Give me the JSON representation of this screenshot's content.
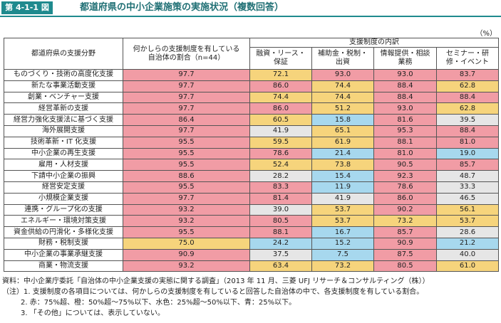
{
  "header": {
    "figure_no": "第 4-1-1 図",
    "title": "都道府県の中小企業施策の実施状況（複数回答）"
  },
  "unit": "（%）",
  "table": {
    "col_header": "都道府県の支援分野",
    "share_header": "何かしらの支援制度を有している自治体の割合（n=44）",
    "group_header": "支援制度の内訳",
    "sub_headers": [
      "融資・リース・保証",
      "補助金・税制・出資",
      "情報提供・相談業務",
      "セミナー・研修・イベント"
    ],
    "rows": [
      {
        "label": "ものづくり・技術の高度化支援",
        "values": [
          "97.7",
          "72.1",
          "93.0",
          "93.0",
          "83.7"
        ],
        "colors": [
          "#f19ca5",
          "#f6d47c",
          "#f19ca5",
          "#f19ca5",
          "#f19ca5"
        ]
      },
      {
        "label": "新たな事業活動支援",
        "values": [
          "97.7",
          "86.0",
          "74.4",
          "88.4",
          "62.8"
        ],
        "colors": [
          "#f19ca5",
          "#f19ca5",
          "#f6d47c",
          "#f19ca5",
          "#f6d47c"
        ]
      },
      {
        "label": "創業・ベンチャー支援",
        "values": [
          "97.7",
          "74.4",
          "74.4",
          "88.4",
          "88.4"
        ],
        "colors": [
          "#f19ca5",
          "#f6d47c",
          "#f6d47c",
          "#f19ca5",
          "#f19ca5"
        ]
      },
      {
        "label": "経営革新の支援",
        "values": [
          "97.7",
          "86.0",
          "51.2",
          "93.0",
          "62.8"
        ],
        "colors": [
          "#f19ca5",
          "#f19ca5",
          "#f6d47c",
          "#f19ca5",
          "#f6d47c"
        ]
      },
      {
        "label": "経営力強化支援法に基づく支援",
        "values": [
          "86.4",
          "60.5",
          "15.8",
          "81.6",
          "39.5"
        ],
        "colors": [
          "#f19ca5",
          "#f6d47c",
          "#a7d8ee",
          "#f19ca5",
          "#e6e6e6"
        ]
      },
      {
        "label": "海外展開支援",
        "values": [
          "97.7",
          "41.9",
          "65.1",
          "95.3",
          "88.4"
        ],
        "colors": [
          "#f19ca5",
          "#e6e6e6",
          "#f6d47c",
          "#f19ca5",
          "#f19ca5"
        ]
      },
      {
        "label": "技術革新・IT 化支援",
        "values": [
          "95.5",
          "59.5",
          "61.9",
          "88.1",
          "81.0"
        ],
        "colors": [
          "#f19ca5",
          "#f6d47c",
          "#f6d47c",
          "#f19ca5",
          "#f19ca5"
        ]
      },
      {
        "label": "中小企業の再生支援",
        "values": [
          "95.5",
          "78.6",
          "21.4",
          "81.0",
          "19.0"
        ],
        "colors": [
          "#f19ca5",
          "#f19ca5",
          "#a7d8ee",
          "#f19ca5",
          "#a7d8ee"
        ]
      },
      {
        "label": "雇用・人材支援",
        "values": [
          "95.5",
          "52.4",
          "73.8",
          "90.5",
          "85.7"
        ],
        "colors": [
          "#f19ca5",
          "#f6d47c",
          "#f6d47c",
          "#f19ca5",
          "#f19ca5"
        ]
      },
      {
        "label": "下請中小企業の振興",
        "values": [
          "88.6",
          "28.2",
          "15.4",
          "92.3",
          "48.7"
        ],
        "colors": [
          "#f19ca5",
          "#e6e6e6",
          "#a7d8ee",
          "#f19ca5",
          "#e6e6e6"
        ]
      },
      {
        "label": "経営安定支援",
        "values": [
          "95.5",
          "83.3",
          "11.9",
          "78.6",
          "33.3"
        ],
        "colors": [
          "#f19ca5",
          "#f19ca5",
          "#a7d8ee",
          "#f19ca5",
          "#e6e6e6"
        ]
      },
      {
        "label": "小規模企業支援",
        "values": [
          "97.7",
          "81.4",
          "41.9",
          "86.0",
          "46.5"
        ],
        "colors": [
          "#f19ca5",
          "#f19ca5",
          "#e6e6e6",
          "#f19ca5",
          "#e6e6e6"
        ]
      },
      {
        "label": "連携・グループ化の支援",
        "values": [
          "93.2",
          "39.0",
          "53.7",
          "90.2",
          "56.1"
        ],
        "colors": [
          "#f19ca5",
          "#e6e6e6",
          "#f6d47c",
          "#f19ca5",
          "#f6d47c"
        ]
      },
      {
        "label": "エネルギー・環境対策支援",
        "values": [
          "93.2",
          "80.5",
          "53.7",
          "73.2",
          "53.7"
        ],
        "colors": [
          "#f19ca5",
          "#f19ca5",
          "#f6d47c",
          "#f6d47c",
          "#f6d47c"
        ]
      },
      {
        "label": "資金供給の円滑化・多様化支援",
        "values": [
          "95.5",
          "88.1",
          "16.7",
          "85.7",
          "28.6"
        ],
        "colors": [
          "#f19ca5",
          "#f19ca5",
          "#a7d8ee",
          "#f19ca5",
          "#e6e6e6"
        ]
      },
      {
        "label": "財務・税制支援",
        "values": [
          "75.0",
          "24.2",
          "15.2",
          "90.9",
          "21.2"
        ],
        "colors": [
          "#f6d47c",
          "#a7d8ee",
          "#a7d8ee",
          "#f19ca5",
          "#a7d8ee"
        ]
      },
      {
        "label": "中小企業の事業承継支援",
        "values": [
          "90.9",
          "37.5",
          "7.5",
          "87.5",
          "40.0"
        ],
        "colors": [
          "#f19ca5",
          "#e6e6e6",
          "#a7d8ee",
          "#f19ca5",
          "#e6e6e6"
        ]
      },
      {
        "label": "商業・物流支援",
        "values": [
          "93.2",
          "63.4",
          "73.2",
          "80.5",
          "61.0"
        ],
        "colors": [
          "#f19ca5",
          "#f6d47c",
          "#f6d47c",
          "#f19ca5",
          "#f6d47c"
        ]
      }
    ]
  },
  "notes": [
    "資料：中小企業庁委託「自治体の中小企業支援の実態に関する調査」（2013 年 11 月、三菱 UFJ リサーチ＆コンサルティング（株））",
    "（注）1.  支援制度の各項目については、何かしらの支援制度を有していると回答した自治体の中で、各支援制度を有している割合。",
    "2.  赤：75%超、橙：50%超～75%以下、水色：25%超～50%以下、青：25%以下。",
    "3.  「その他」については、表示していない。"
  ]
}
